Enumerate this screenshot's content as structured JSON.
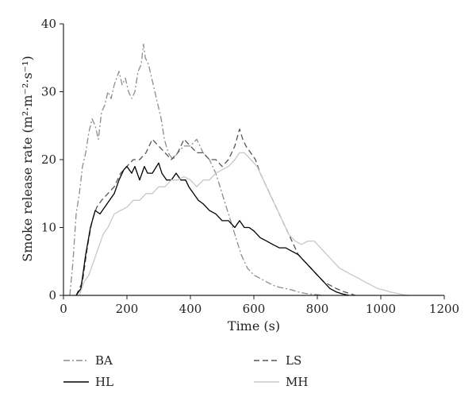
{
  "chart_data": {
    "type": "line",
    "xlabel": "Time (s)",
    "ylabel": "Smoke release rate (m²·m⁻²·s⁻¹)",
    "xlim": [
      0,
      1200
    ],
    "ylim": [
      0,
      40
    ],
    "xticks": [
      0,
      200,
      400,
      600,
      800,
      1000,
      1200
    ],
    "yticks": [
      0,
      10,
      20,
      30,
      40
    ],
    "grid": false,
    "legend_position": "below",
    "series": [
      {
        "name": "BA",
        "color": "#8c8c8c",
        "dash": "dashdot",
        "points": [
          [
            20,
            0
          ],
          [
            30,
            5
          ],
          [
            40,
            12
          ],
          [
            50,
            15
          ],
          [
            60,
            19
          ],
          [
            70,
            21
          ],
          [
            80,
            24
          ],
          [
            90,
            26
          ],
          [
            100,
            25
          ],
          [
            110,
            23
          ],
          [
            120,
            27
          ],
          [
            130,
            28
          ],
          [
            140,
            30
          ],
          [
            150,
            29
          ],
          [
            160,
            31
          ],
          [
            175,
            33
          ],
          [
            185,
            31
          ],
          [
            195,
            32
          ],
          [
            205,
            30
          ],
          [
            215,
            29
          ],
          [
            225,
            30
          ],
          [
            235,
            33
          ],
          [
            245,
            34
          ],
          [
            252,
            37
          ],
          [
            258,
            35
          ],
          [
            268,
            34
          ],
          [
            278,
            32
          ],
          [
            288,
            30
          ],
          [
            298,
            28
          ],
          [
            308,
            26
          ],
          [
            318,
            23
          ],
          [
            330,
            21
          ],
          [
            345,
            20
          ],
          [
            360,
            21
          ],
          [
            380,
            22
          ],
          [
            400,
            22
          ],
          [
            420,
            23
          ],
          [
            440,
            21
          ],
          [
            460,
            20
          ],
          [
            480,
            18
          ],
          [
            500,
            15
          ],
          [
            520,
            12
          ],
          [
            540,
            9
          ],
          [
            560,
            6
          ],
          [
            580,
            4
          ],
          [
            600,
            3
          ],
          [
            620,
            2.5
          ],
          [
            640,
            2
          ],
          [
            660,
            1.5
          ],
          [
            680,
            1.2
          ],
          [
            700,
            1
          ],
          [
            720,
            0.8
          ],
          [
            740,
            0.5
          ],
          [
            760,
            0.3
          ],
          [
            780,
            0.2
          ],
          [
            800,
            0.1
          ],
          [
            820,
            0
          ]
        ]
      },
      {
        "name": "LS",
        "color": "#555555",
        "dash": "dash",
        "points": [
          [
            40,
            0
          ],
          [
            60,
            2
          ],
          [
            75,
            7
          ],
          [
            90,
            11
          ],
          [
            105,
            13
          ],
          [
            120,
            14
          ],
          [
            140,
            15
          ],
          [
            160,
            16
          ],
          [
            180,
            18
          ],
          [
            200,
            19
          ],
          [
            220,
            20
          ],
          [
            240,
            20
          ],
          [
            260,
            21
          ],
          [
            280,
            23
          ],
          [
            300,
            22
          ],
          [
            320,
            21
          ],
          [
            340,
            20
          ],
          [
            360,
            21
          ],
          [
            380,
            23
          ],
          [
            400,
            22
          ],
          [
            420,
            21
          ],
          [
            440,
            21
          ],
          [
            460,
            20
          ],
          [
            480,
            20
          ],
          [
            500,
            19
          ],
          [
            520,
            20
          ],
          [
            540,
            22
          ],
          [
            555,
            24.5
          ],
          [
            565,
            23
          ],
          [
            575,
            22
          ],
          [
            590,
            21
          ],
          [
            605,
            20
          ],
          [
            620,
            18
          ],
          [
            640,
            16
          ],
          [
            660,
            14
          ],
          [
            680,
            12
          ],
          [
            700,
            10
          ],
          [
            720,
            8
          ],
          [
            740,
            6
          ],
          [
            760,
            5
          ],
          [
            780,
            4
          ],
          [
            800,
            3
          ],
          [
            820,
            2
          ],
          [
            840,
            1.5
          ],
          [
            860,
            1
          ],
          [
            880,
            0.6
          ],
          [
            900,
            0.3
          ],
          [
            920,
            0
          ]
        ]
      },
      {
        "name": "HL",
        "color": "#000000",
        "dash": "solid",
        "points": [
          [
            40,
            0
          ],
          [
            55,
            1
          ],
          [
            70,
            6
          ],
          [
            85,
            10
          ],
          [
            100,
            12.5
          ],
          [
            115,
            12
          ],
          [
            130,
            13
          ],
          [
            145,
            14
          ],
          [
            160,
            15
          ],
          [
            175,
            17
          ],
          [
            190,
            18.5
          ],
          [
            200,
            19
          ],
          [
            215,
            18
          ],
          [
            225,
            19
          ],
          [
            240,
            17
          ],
          [
            255,
            19
          ],
          [
            265,
            18
          ],
          [
            280,
            18
          ],
          [
            300,
            19.5
          ],
          [
            310,
            18
          ],
          [
            325,
            17
          ],
          [
            340,
            17
          ],
          [
            355,
            18
          ],
          [
            370,
            17
          ],
          [
            385,
            17
          ],
          [
            395,
            16
          ],
          [
            410,
            15
          ],
          [
            425,
            14
          ],
          [
            440,
            13.5
          ],
          [
            460,
            12.5
          ],
          [
            480,
            12
          ],
          [
            500,
            11
          ],
          [
            520,
            11
          ],
          [
            540,
            10
          ],
          [
            555,
            11
          ],
          [
            570,
            10
          ],
          [
            585,
            10
          ],
          [
            600,
            9.5
          ],
          [
            620,
            8.5
          ],
          [
            640,
            8
          ],
          [
            660,
            7.5
          ],
          [
            680,
            7
          ],
          [
            700,
            7
          ],
          [
            720,
            6.5
          ],
          [
            740,
            6
          ],
          [
            760,
            5
          ],
          [
            780,
            4
          ],
          [
            800,
            3
          ],
          [
            820,
            2
          ],
          [
            840,
            1
          ],
          [
            860,
            0.5
          ],
          [
            880,
            0.2
          ],
          [
            900,
            0
          ]
        ]
      },
      {
        "name": "MH",
        "color": "#c8c8c8",
        "dash": "solid",
        "points": [
          [
            50,
            0
          ],
          [
            65,
            2
          ],
          [
            80,
            3
          ],
          [
            95,
            5
          ],
          [
            110,
            7
          ],
          [
            125,
            9
          ],
          [
            140,
            10
          ],
          [
            160,
            12
          ],
          [
            180,
            12.5
          ],
          [
            200,
            13
          ],
          [
            220,
            14
          ],
          [
            240,
            14
          ],
          [
            260,
            15
          ],
          [
            280,
            15
          ],
          [
            300,
            16
          ],
          [
            320,
            16
          ],
          [
            340,
            17
          ],
          [
            360,
            17
          ],
          [
            380,
            17.5
          ],
          [
            400,
            17
          ],
          [
            420,
            16
          ],
          [
            440,
            17
          ],
          [
            460,
            17
          ],
          [
            480,
            18
          ],
          [
            500,
            18.5
          ],
          [
            520,
            19
          ],
          [
            540,
            20
          ],
          [
            555,
            21
          ],
          [
            570,
            21
          ],
          [
            590,
            20
          ],
          [
            610,
            19
          ],
          [
            630,
            17
          ],
          [
            650,
            15
          ],
          [
            670,
            13
          ],
          [
            690,
            11
          ],
          [
            710,
            9
          ],
          [
            730,
            8
          ],
          [
            750,
            7.5
          ],
          [
            770,
            8
          ],
          [
            790,
            8
          ],
          [
            810,
            7
          ],
          [
            830,
            6
          ],
          [
            850,
            5
          ],
          [
            870,
            4
          ],
          [
            890,
            3.5
          ],
          [
            910,
            3
          ],
          [
            930,
            2.5
          ],
          [
            950,
            2
          ],
          [
            970,
            1.5
          ],
          [
            990,
            1
          ],
          [
            1010,
            0.8
          ],
          [
            1030,
            0.5
          ],
          [
            1050,
            0.3
          ],
          [
            1070,
            0.1
          ],
          [
            1090,
            0
          ]
        ]
      }
    ]
  }
}
